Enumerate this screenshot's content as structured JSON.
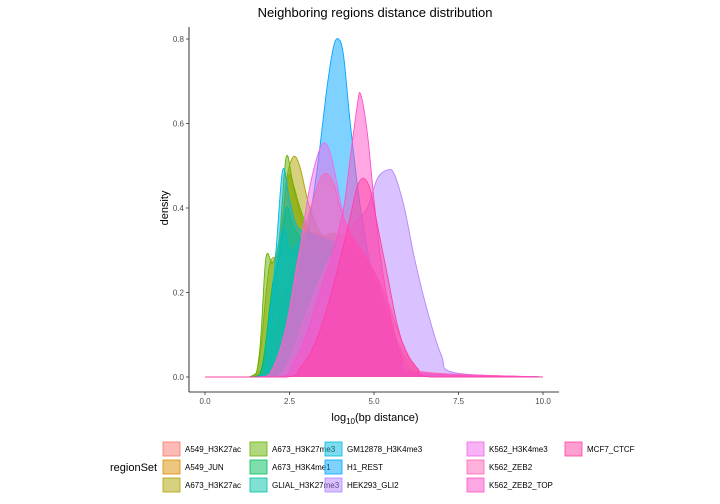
{
  "chart_data": {
    "type": "area",
    "title": "Neighboring regions distance distribution",
    "xlabel": {
      "base": "log",
      "subscript": "10",
      "rest": "(bp distance)"
    },
    "ylabel": "density",
    "xlim": [
      0,
      10
    ],
    "ylim": [
      0,
      0.8
    ],
    "x_ticks": [
      0.0,
      2.5,
      5.0,
      7.5,
      10.0
    ],
    "x_tick_labels": [
      "0.0",
      "2.5",
      "5.0",
      "7.5",
      "10.0"
    ],
    "y_ticks": [
      0.0,
      0.2,
      0.4,
      0.6,
      0.8
    ],
    "y_tick_labels": [
      "0.0",
      "0.2",
      "0.4",
      "0.6",
      "0.8"
    ],
    "grid": false,
    "legend": {
      "title": "regionSet",
      "placement": "bottom",
      "columns": 5,
      "rows": 3
    },
    "series": [
      {
        "name": "A549_H3K27ac",
        "color": "#F8766D",
        "x": [
          0,
          1.3,
          1.6,
          2.0,
          2.4,
          2.8,
          3.2,
          3.6,
          4.0,
          4.4,
          4.8,
          5.2,
          5.6,
          6.0,
          6.4,
          7.0,
          10
        ],
        "values": [
          0,
          0,
          0.01,
          0.08,
          0.2,
          0.3,
          0.34,
          0.33,
          0.33,
          0.32,
          0.28,
          0.2,
          0.1,
          0.04,
          0.01,
          0,
          0
        ]
      },
      {
        "name": "A549_JUN",
        "color": "#DB8E00",
        "x": [
          0,
          1.4,
          1.7,
          2.0,
          2.3,
          2.5,
          2.7,
          3.0,
          3.4,
          3.8,
          4.2,
          4.6,
          5.0,
          5.4,
          5.8,
          6.4,
          10
        ],
        "values": [
          0,
          0,
          0.02,
          0.15,
          0.38,
          0.48,
          0.42,
          0.35,
          0.33,
          0.34,
          0.33,
          0.3,
          0.24,
          0.15,
          0.06,
          0.01,
          0
        ]
      },
      {
        "name": "A673_H3K27ac",
        "color": "#AEA200",
        "x": [
          0,
          1.3,
          1.6,
          1.9,
          2.2,
          2.4,
          2.6,
          2.8,
          3.1,
          3.5,
          3.9,
          4.3,
          4.7,
          5.1,
          5.5,
          6.0,
          10
        ],
        "values": [
          0,
          0,
          0.04,
          0.26,
          0.3,
          0.46,
          0.52,
          0.5,
          0.4,
          0.33,
          0.32,
          0.3,
          0.25,
          0.16,
          0.07,
          0.01,
          0
        ]
      },
      {
        "name": "A673_H3K27me3",
        "color": "#64B200",
        "x": [
          0,
          1.3,
          1.6,
          1.8,
          2.0,
          2.2,
          2.4,
          2.6,
          2.9,
          3.3,
          3.7,
          4.1,
          4.5,
          4.9,
          5.3,
          5.8,
          10
        ],
        "values": [
          0,
          0,
          0.05,
          0.28,
          0.27,
          0.33,
          0.52,
          0.46,
          0.38,
          0.32,
          0.3,
          0.29,
          0.24,
          0.16,
          0.07,
          0.01,
          0
        ]
      },
      {
        "name": "A673_H3K4me1",
        "color": "#00BD5C",
        "x": [
          0,
          1.4,
          1.7,
          2.0,
          2.2,
          2.4,
          2.6,
          2.9,
          3.2,
          3.6,
          4.0,
          4.4,
          4.8,
          5.2,
          5.6,
          6.1,
          10
        ],
        "values": [
          0,
          0,
          0.03,
          0.22,
          0.28,
          0.4,
          0.36,
          0.32,
          0.3,
          0.29,
          0.3,
          0.29,
          0.24,
          0.15,
          0.07,
          0.01,
          0
        ]
      },
      {
        "name": "GLIAL_H3K27me3",
        "color": "#00C1A7",
        "x": [
          0,
          1.4,
          1.7,
          2.0,
          2.3,
          2.5,
          2.7,
          3.0,
          3.4,
          3.8,
          4.2,
          4.6,
          5.0,
          5.4,
          5.8,
          6.3,
          10
        ],
        "values": [
          0,
          0,
          0.02,
          0.2,
          0.35,
          0.3,
          0.31,
          0.34,
          0.33,
          0.31,
          0.3,
          0.28,
          0.23,
          0.15,
          0.06,
          0.01,
          0
        ]
      },
      {
        "name": "GM12878_H3K4me3",
        "color": "#00BADE",
        "x": [
          0,
          1.5,
          1.8,
          2.1,
          2.3,
          2.5,
          2.7,
          3.0,
          3.4,
          3.8,
          4.2,
          4.6,
          5.0,
          5.4,
          5.8,
          6.3,
          10
        ],
        "values": [
          0,
          0,
          0.03,
          0.3,
          0.49,
          0.42,
          0.36,
          0.34,
          0.33,
          0.32,
          0.31,
          0.29,
          0.25,
          0.16,
          0.06,
          0.01,
          0
        ]
      },
      {
        "name": "H1_REST",
        "color": "#00A6FF",
        "x": [
          0,
          1.8,
          2.2,
          2.6,
          3.0,
          3.3,
          3.6,
          3.8,
          3.95,
          4.1,
          4.3,
          4.6,
          5.0,
          5.4,
          5.8,
          6.2,
          10
        ],
        "values": [
          0,
          0,
          0.05,
          0.18,
          0.33,
          0.48,
          0.68,
          0.78,
          0.8,
          0.76,
          0.6,
          0.4,
          0.22,
          0.1,
          0.04,
          0.01,
          0
        ]
      },
      {
        "name": "HEK293_GLI2",
        "color": "#B385FF",
        "x": [
          0,
          2.0,
          2.5,
          3.0,
          3.5,
          4.0,
          4.4,
          4.8,
          5.1,
          5.4,
          5.6,
          5.9,
          6.2,
          6.6,
          7.0,
          7.4,
          10
        ],
        "values": [
          0,
          0,
          0.04,
          0.15,
          0.25,
          0.32,
          0.36,
          0.4,
          0.47,
          0.49,
          0.48,
          0.4,
          0.28,
          0.15,
          0.05,
          0.01,
          0
        ]
      },
      {
        "name": "K562_H3K4me3",
        "color": "#EF67EB",
        "x": [
          0,
          1.6,
          2.0,
          2.4,
          2.8,
          3.1,
          3.4,
          3.6,
          3.8,
          4.1,
          4.4,
          4.8,
          5.2,
          5.6,
          6.0,
          6.5,
          10
        ],
        "values": [
          0,
          0,
          0.02,
          0.12,
          0.3,
          0.45,
          0.54,
          0.55,
          0.5,
          0.38,
          0.32,
          0.28,
          0.2,
          0.1,
          0.03,
          0.01,
          0
        ]
      },
      {
        "name": "K562_ZEB2",
        "color": "#FF63B6",
        "x": [
          0,
          1.6,
          2.0,
          2.4,
          2.8,
          3.2,
          3.5,
          3.8,
          4.0,
          4.3,
          4.6,
          5.0,
          5.4,
          5.8,
          6.2,
          6.7,
          10
        ],
        "values": [
          0,
          0,
          0.02,
          0.12,
          0.3,
          0.42,
          0.48,
          0.46,
          0.4,
          0.34,
          0.3,
          0.25,
          0.18,
          0.09,
          0.03,
          0.01,
          0
        ]
      },
      {
        "name": "K562_ZEB2_TOP",
        "color": "#FF4FC8",
        "x": [
          0,
          2.2,
          2.6,
          3.0,
          3.4,
          3.8,
          4.1,
          4.3,
          4.5,
          4.6,
          4.8,
          5.0,
          5.2,
          5.5,
          5.8,
          6.2,
          10
        ],
        "values": [
          0,
          0,
          0.03,
          0.1,
          0.2,
          0.3,
          0.4,
          0.52,
          0.64,
          0.67,
          0.58,
          0.42,
          0.28,
          0.14,
          0.05,
          0.01,
          0
        ]
      },
      {
        "name": "MCF7_CTCF",
        "color": "#FF3FA4",
        "x": [
          0,
          2.4,
          2.8,
          3.2,
          3.6,
          4.0,
          4.3,
          4.5,
          4.7,
          4.9,
          5.1,
          5.4,
          5.7,
          6.0,
          6.3,
          6.7,
          10
        ],
        "values": [
          0,
          0,
          0.02,
          0.07,
          0.16,
          0.28,
          0.38,
          0.45,
          0.47,
          0.44,
          0.36,
          0.24,
          0.12,
          0.05,
          0.02,
          0,
          0
        ]
      }
    ]
  }
}
